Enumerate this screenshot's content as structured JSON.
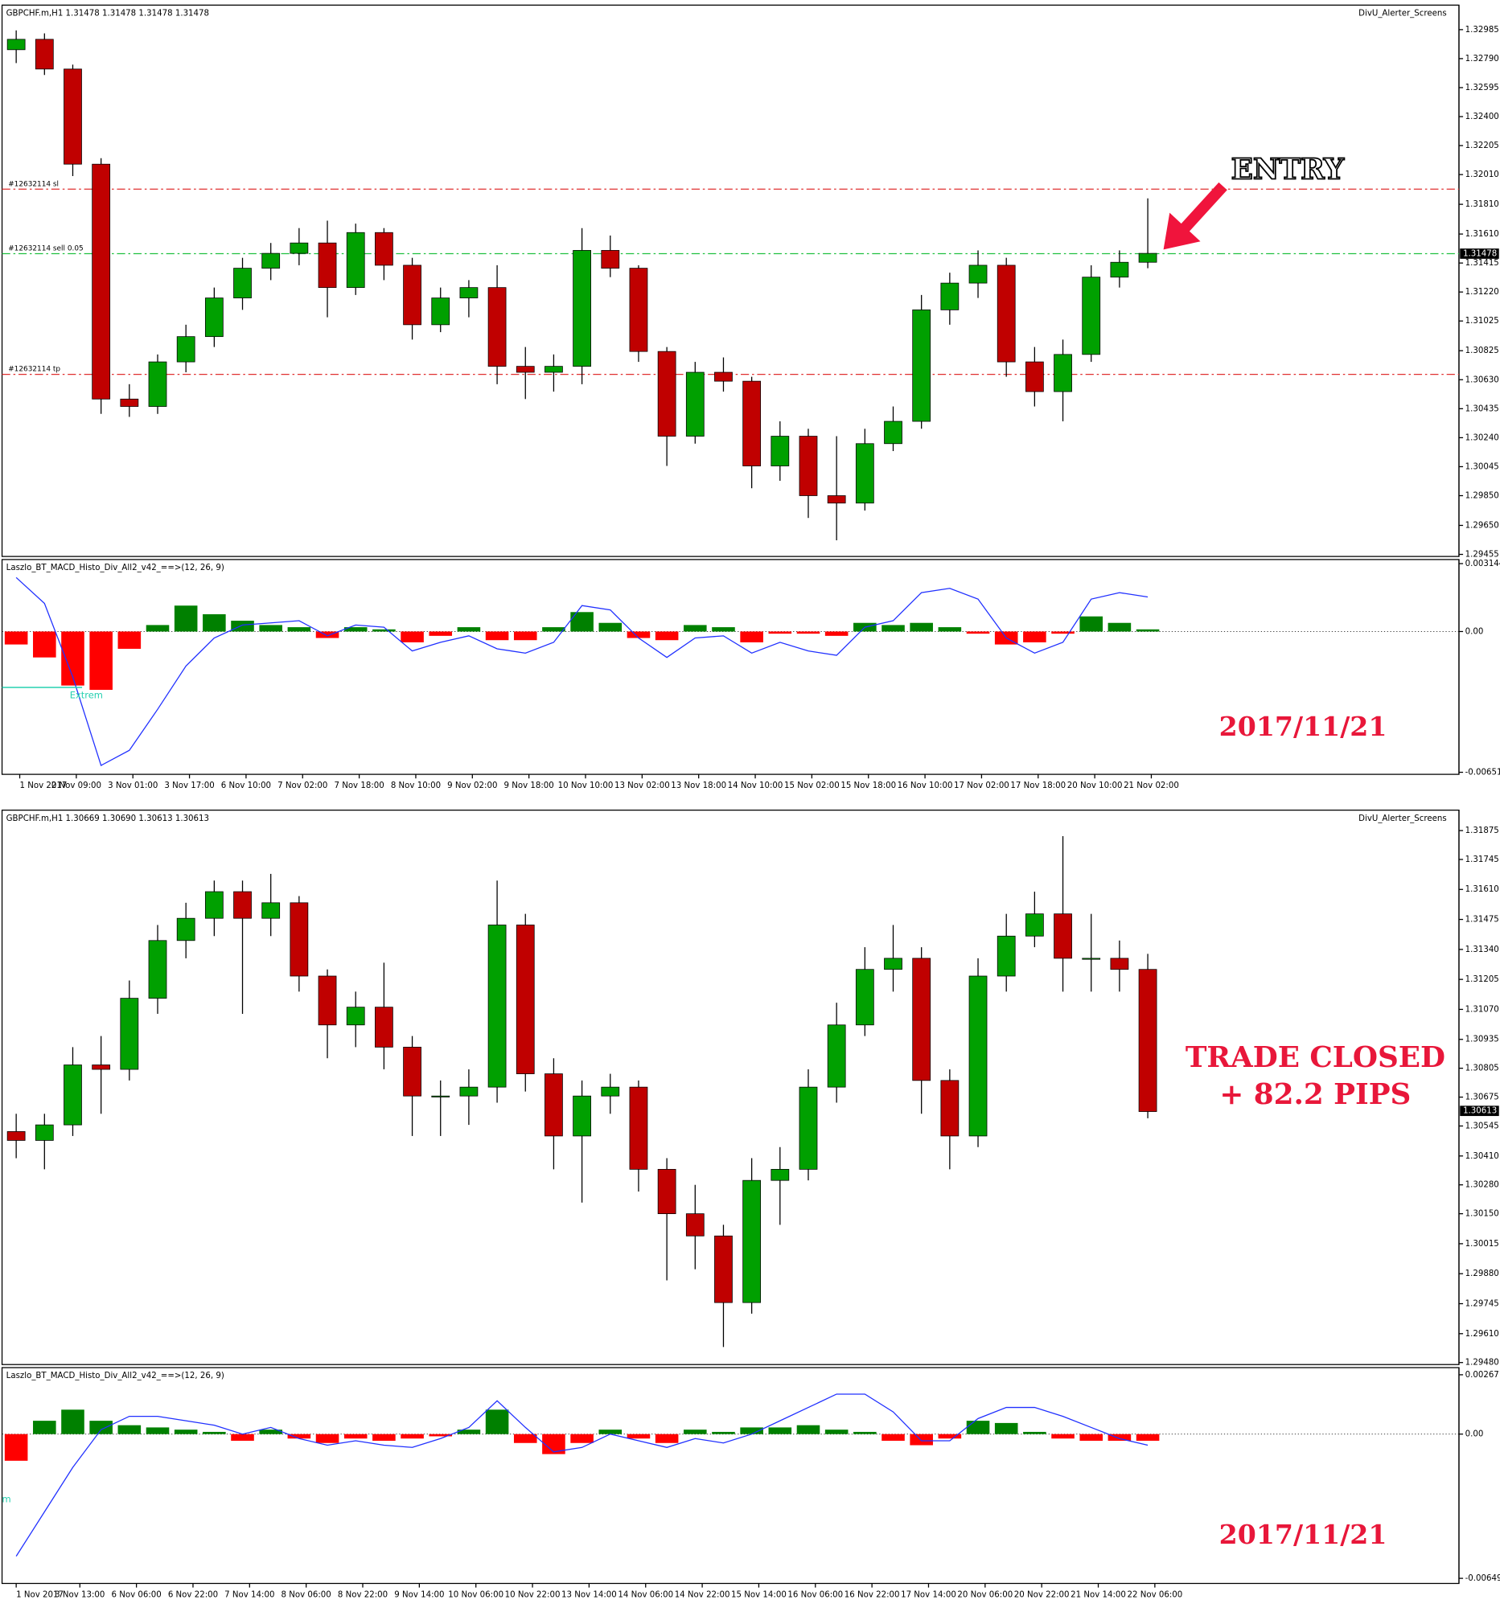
{
  "chart_data": [
    {
      "type": "candlestick",
      "title": "GBPCHF.m,H1  1.31478 1.31478 1.31478 1.31478",
      "indicator_label": "DivU_Alerter_Screens",
      "x": [
        4,
        12,
        20,
        28,
        36,
        44,
        52,
        60,
        68,
        76,
        84,
        92,
        100,
        108,
        116,
        124,
        132,
        140,
        148,
        156,
        164,
        172,
        180,
        188,
        196,
        204,
        212,
        220,
        228,
        236,
        244,
        252,
        260,
        268,
        276,
        284,
        292,
        300,
        308,
        316,
        324
      ],
      "open": [
        1.3285,
        1.3292,
        1.3272,
        1.3208,
        1.305,
        1.3045,
        1.3075,
        1.3092,
        1.3118,
        1.3138,
        1.3148,
        1.3155,
        1.3125,
        1.3162,
        1.314,
        1.31,
        1.3118,
        1.3125,
        1.3072,
        1.3068,
        1.3072,
        1.315,
        1.3138,
        1.3082,
        1.3025,
        1.3068,
        1.3062,
        1.3005,
        1.3025,
        1.2985,
        1.298,
        1.302,
        1.3035,
        1.311,
        1.3128,
        1.314,
        1.3075,
        1.3055,
        1.308,
        1.3132,
        1.3142
      ],
      "high": [
        1.3298,
        1.3296,
        1.3275,
        1.3212,
        1.306,
        1.308,
        1.31,
        1.3125,
        1.3145,
        1.3155,
        1.3165,
        1.317,
        1.3168,
        1.3165,
        1.3145,
        1.3125,
        1.313,
        1.314,
        1.3085,
        1.308,
        1.3165,
        1.316,
        1.314,
        1.3085,
        1.3075,
        1.3078,
        1.3065,
        1.3035,
        1.303,
        1.3025,
        1.303,
        1.3045,
        1.312,
        1.3135,
        1.315,
        1.3145,
        1.3085,
        1.309,
        1.314,
        1.315,
        1.3185
      ],
      "low": [
        1.3276,
        1.3268,
        1.32,
        1.304,
        1.3038,
        1.304,
        1.3068,
        1.3085,
        1.311,
        1.313,
        1.314,
        1.3105,
        1.312,
        1.313,
        1.309,
        1.3095,
        1.3105,
        1.306,
        1.305,
        1.3055,
        1.306,
        1.3132,
        1.3075,
        1.3005,
        1.302,
        1.3055,
        1.299,
        1.2995,
        1.297,
        1.2955,
        1.2975,
        1.3015,
        1.303,
        1.31,
        1.3118,
        1.3065,
        1.3045,
        1.3035,
        1.3075,
        1.3125,
        1.3138
      ],
      "close": [
        1.3292,
        1.3272,
        1.3208,
        1.305,
        1.3045,
        1.3075,
        1.3092,
        1.3118,
        1.3138,
        1.3148,
        1.3155,
        1.3125,
        1.3162,
        1.314,
        1.31,
        1.3118,
        1.3125,
        1.3072,
        1.3068,
        1.3072,
        1.315,
        1.3138,
        1.3082,
        1.3025,
        1.3068,
        1.3062,
        1.3005,
        1.3025,
        1.2985,
        1.298,
        1.302,
        1.3035,
        1.311,
        1.3128,
        1.314,
        1.3075,
        1.3055,
        1.308,
        1.3132,
        1.3142,
        1.3148
      ],
      "up_color": "#00a000",
      "down_color": "#c00000",
      "xlim": [
        0,
        412
      ],
      "ylim": [
        1.29441,
        1.3315
      ],
      "yticks": [
        {
          "value": 1.32985,
          "label": "1.32985"
        },
        {
          "value": 1.3279,
          "label": "1.32790"
        },
        {
          "value": 1.32595,
          "label": "1.32595"
        },
        {
          "value": 1.324,
          "label": "1.32400"
        },
        {
          "value": 1.32205,
          "label": "1.32205"
        },
        {
          "value": 1.3201,
          "label": "1.32010"
        },
        {
          "value": 1.3181,
          "label": "1.31810"
        },
        {
          "value": 1.3161,
          "label": "1.31610"
        },
        {
          "value": 1.31415,
          "label": "1.31415"
        },
        {
          "value": 1.3122,
          "label": "1.31220"
        },
        {
          "value": 1.31025,
          "label": "1.31025"
        },
        {
          "value": 1.30825,
          "label": "1.30825"
        },
        {
          "value": 1.3063,
          "label": "1.30630"
        },
        {
          "value": 1.30435,
          "label": "1.30435"
        },
        {
          "value": 1.3024,
          "label": "1.30240"
        },
        {
          "value": 1.30045,
          "label": "1.30045"
        },
        {
          "value": 1.2985,
          "label": "1.29850"
        },
        {
          "value": 1.2965,
          "label": "1.29650"
        },
        {
          "value": 1.29455,
          "label": "1.29455"
        }
      ],
      "current_price": {
        "value": 1.31478,
        "label": "1.31478"
      },
      "order_lines": [
        {
          "label": "#12632114 sl",
          "value": 1.31912,
          "color": "#e03030"
        },
        {
          "label": "#12632114 sell 0.05",
          "value": 1.31478,
          "color": "#20c040"
        },
        {
          "label": "#12632114 tp",
          "value": 1.30666,
          "color": "#e03030"
        }
      ],
      "annotations": [
        "ENTRY"
      ]
    },
    {
      "type": "macd",
      "title": "Laszlo_BT_MACD_Histo_Div_All2_v42_==>(12, 26, 9)",
      "x": [
        4,
        12,
        20,
        28,
        36,
        44,
        52,
        60,
        68,
        76,
        84,
        92,
        100,
        108,
        116,
        124,
        132,
        140,
        148,
        156,
        164,
        172,
        180,
        188,
        196,
        204,
        212,
        220,
        228,
        236,
        244,
        252,
        260,
        268,
        276,
        284,
        292,
        300,
        308,
        316,
        324
      ],
      "values": [
        -0.0006,
        -0.0012,
        -0.0025,
        -0.0027,
        -0.0008,
        0.0003,
        0.0012,
        0.0008,
        0.0005,
        0.0003,
        0.0002,
        -0.0003,
        0.0002,
        0.0001,
        -0.0005,
        -0.0002,
        0.0002,
        -0.0004,
        -0.0004,
        0.0002,
        0.0009,
        0.0004,
        -0.0003,
        -0.0004,
        0.0003,
        0.0002,
        -0.0005,
        -0.0001,
        -0.0001,
        -0.0002,
        0.0004,
        0.0003,
        0.0004,
        0.0002,
        -0.0001,
        -0.0006,
        -0.0005,
        -0.0001,
        0.0007,
        0.0004,
        0.0001
      ],
      "pos_color": "#008000",
      "neg_color": "#ff0000",
      "line": {
        "color": "#2030ff",
        "values": [
          0.0025,
          0.0013,
          -0.0021,
          -0.0062,
          -0.0055,
          -0.0036,
          -0.0016,
          -0.0003,
          0.0003,
          0.0004,
          0.0005,
          -0.0002,
          0.0003,
          0.0002,
          -0.0009,
          -0.0005,
          -0.0002,
          -0.0008,
          -0.001,
          -0.0005,
          0.0012,
          0.001,
          -0.0003,
          -0.0012,
          -0.0003,
          -0.0002,
          -0.001,
          -0.0005,
          -0.0009,
          -0.0011,
          0.0002,
          0.0005,
          0.0018,
          0.002,
          0.0015,
          -0.0003,
          -0.001,
          -0.0005,
          0.0015,
          0.0018,
          0.0016
        ]
      },
      "xlim": [
        0,
        412
      ],
      "ylim": [
        -0.006612,
        0.003333
      ],
      "yticks": [
        0.003144,
        {
          "value": 0,
          "label": "0.00"
        },
        -0.006517
      ],
      "xticks": [
        {
          "value": 5,
          "label": "1 Nov 2017"
        },
        {
          "value": 21,
          "label": "2 Nov 09:00"
        },
        {
          "value": 37,
          "label": "3 Nov 01:00"
        },
        {
          "value": 53,
          "label": "3 Nov 17:00"
        },
        {
          "value": 69,
          "label": "6 Nov 10:00"
        },
        {
          "value": 85,
          "label": "7 Nov 02:00"
        },
        {
          "value": 101,
          "label": "7 Nov 18:00"
        },
        {
          "value": 117,
          "label": "8 Nov 10:00"
        },
        {
          "value": 133,
          "label": "9 Nov 02:00"
        },
        {
          "value": 149,
          "label": "9 Nov 18:00"
        },
        {
          "value": 165,
          "label": "10 Nov 10:00"
        },
        {
          "value": 181,
          "label": "13 Nov 02:00"
        },
        {
          "value": 197,
          "label": "13 Nov 18:00"
        },
        {
          "value": 213,
          "label": "14 Nov 10:00"
        },
        {
          "value": 229,
          "label": "15 Nov 02:00"
        },
        {
          "value": 245,
          "label": "15 Nov 18:00"
        },
        {
          "value": 261,
          "label": "16 Nov 10:00"
        },
        {
          "value": 277,
          "label": "17 Nov 02:00"
        },
        {
          "value": 293,
          "label": "17 Nov 18:00"
        },
        {
          "value": 309,
          "label": "20 Nov 10:00"
        },
        {
          "value": 325,
          "label": "21 Nov 02:00"
        }
      ],
      "extrem_label": "Extrem",
      "annotations": [
        "2017/11/21"
      ]
    },
    {
      "type": "candlestick",
      "title": "GBPCHF.m,H1  1.30669 1.30690 1.30613 1.30613",
      "indicator_label": "DivU_Alerter_Screens",
      "x": [
        4,
        12,
        20,
        28,
        36,
        44,
        52,
        60,
        68,
        76,
        84,
        92,
        100,
        108,
        116,
        124,
        132,
        140,
        148,
        156,
        164,
        172,
        180,
        188,
        196,
        204,
        212,
        220,
        228,
        236,
        244,
        252,
        260,
        268,
        276,
        284,
        292,
        300,
        308,
        316,
        324
      ],
      "open": [
        1.3052,
        1.3048,
        1.3055,
        1.3082,
        1.308,
        1.3112,
        1.3138,
        1.3148,
        1.316,
        1.3148,
        1.3155,
        1.3122,
        1.31,
        1.3108,
        1.309,
        1.3068,
        1.3068,
        1.3072,
        1.3145,
        1.3078,
        1.305,
        1.3068,
        1.3072,
        1.3035,
        1.3015,
        1.3005,
        1.2975,
        1.303,
        1.3035,
        1.3072,
        1.31,
        1.3125,
        1.313,
        1.3075,
        1.305,
        1.3122,
        1.314,
        1.315,
        1.313,
        1.313,
        1.3125
      ],
      "high": [
        1.306,
        1.306,
        1.309,
        1.3095,
        1.312,
        1.3145,
        1.3155,
        1.3165,
        1.3165,
        1.3168,
        1.3158,
        1.3125,
        1.3115,
        1.3128,
        1.3095,
        1.3075,
        1.308,
        1.3165,
        1.315,
        1.3085,
        1.3075,
        1.3078,
        1.3075,
        1.304,
        1.3028,
        1.301,
        1.304,
        1.3045,
        1.308,
        1.311,
        1.3135,
        1.3145,
        1.3135,
        1.308,
        1.313,
        1.315,
        1.316,
        1.3185,
        1.315,
        1.3138,
        1.3132
      ],
      "low": [
        1.304,
        1.3035,
        1.305,
        1.306,
        1.3075,
        1.3105,
        1.313,
        1.314,
        1.3105,
        1.314,
        1.3115,
        1.3085,
        1.309,
        1.308,
        1.305,
        1.305,
        1.3055,
        1.3065,
        1.307,
        1.3035,
        1.302,
        1.306,
        1.3025,
        1.2985,
        1.299,
        1.2955,
        1.297,
        1.301,
        1.303,
        1.3065,
        1.3095,
        1.3115,
        1.306,
        1.3035,
        1.3045,
        1.3115,
        1.3135,
        1.3115,
        1.3115,
        1.3115,
        1.3058
      ],
      "close": [
        1.3048,
        1.3055,
        1.3082,
        1.308,
        1.3112,
        1.3138,
        1.3148,
        1.316,
        1.3148,
        1.3155,
        1.3122,
        1.31,
        1.3108,
        1.309,
        1.3068,
        1.3068,
        1.3072,
        1.3145,
        1.3078,
        1.305,
        1.3068,
        1.3072,
        1.3035,
        1.3015,
        1.3005,
        1.2975,
        1.303,
        1.3035,
        1.3072,
        1.31,
        1.3125,
        1.313,
        1.3075,
        1.305,
        1.3122,
        1.314,
        1.315,
        1.313,
        1.313,
        1.3125,
        1.3061
      ],
      "up_color": "#00a000",
      "down_color": "#c00000",
      "xlim": [
        0,
        412
      ],
      "ylim": [
        1.29471,
        1.31967
      ],
      "yticks": [
        {
          "value": 1.31875,
          "label": "1.31875"
        },
        {
          "value": 1.31745,
          "label": "1.31745"
        },
        {
          "value": 1.3161,
          "label": "1.31610"
        },
        {
          "value": 1.31475,
          "label": "1.31475"
        },
        {
          "value": 1.3134,
          "label": "1.31340"
        },
        {
          "value": 1.31205,
          "label": "1.31205"
        },
        {
          "value": 1.3107,
          "label": "1.31070"
        },
        {
          "value": 1.30935,
          "label": "1.30935"
        },
        {
          "value": 1.30805,
          "label": "1.30805"
        },
        {
          "value": 1.30675,
          "label": "1.30675"
        },
        {
          "value": 1.30545,
          "label": "1.30545"
        },
        {
          "value": 1.3041,
          "label": "1.30410"
        },
        {
          "value": 1.3028,
          "label": "1.30280"
        },
        {
          "value": 1.3015,
          "label": "1.30150"
        },
        {
          "value": 1.30015,
          "label": "1.30015"
        },
        {
          "value": 1.2988,
          "label": "1.29880"
        },
        {
          "value": 1.29745,
          "label": "1.29745"
        },
        {
          "value": 1.2961,
          "label": "1.29610"
        },
        {
          "value": 1.2948,
          "label": "1.29480"
        }
      ],
      "current_price": {
        "value": 1.30613,
        "label": "1.30613"
      },
      "order_lines": [],
      "annotations": [
        "TRADE CLOSED",
        "+ 82.2 PIPS"
      ]
    },
    {
      "type": "macd",
      "title": "Laszlo_BT_MACD_Histo_Div_All2_v42_==>(12, 26, 9)",
      "x": [
        4,
        12,
        20,
        28,
        36,
        44,
        52,
        60,
        68,
        76,
        84,
        92,
        100,
        108,
        116,
        124,
        132,
        140,
        148,
        156,
        164,
        172,
        180,
        188,
        196,
        204,
        212,
        220,
        228,
        236,
        244,
        252,
        260,
        268,
        276,
        284,
        292,
        300,
        308,
        316,
        324
      ],
      "values": [
        -0.0012,
        0.0006,
        0.0011,
        0.0006,
        0.0004,
        0.0003,
        0.0002,
        0.0001,
        -0.0003,
        0.0002,
        -0.0002,
        -0.0004,
        -0.0002,
        -0.0003,
        -0.0002,
        -0.0001,
        0.0002,
        0.0011,
        -0.0004,
        -0.0009,
        -0.0004,
        0.0002,
        -0.0002,
        -0.0004,
        0.0002,
        0.0001,
        0.0003,
        0.0003,
        0.0004,
        0.0002,
        0.0001,
        -0.0003,
        -0.0005,
        -0.0002,
        0.0006,
        0.0005,
        0.0001,
        -0.0002,
        -0.0003,
        -0.0003,
        -0.0003
      ],
      "pos_color": "#008000",
      "neg_color": "#ff0000",
      "line": {
        "color": "#2030ff",
        "values": [
          -0.0055,
          -0.0035,
          -0.0015,
          0.0002,
          0.0008,
          0.0008,
          0.0006,
          0.0004,
          0,
          0.0003,
          -0.0002,
          -0.0005,
          -0.0003,
          -0.0005,
          -0.0006,
          -0.0002,
          0.0003,
          0.0015,
          0.0003,
          -0.0008,
          -0.0006,
          0,
          -0.0003,
          -0.0006,
          -0.0002,
          -0.0004,
          0,
          0.0006,
          0.0012,
          0.0018,
          0.0018,
          0.001,
          -0.0003,
          -0.0003,
          0.0007,
          0.0012,
          0.0012,
          0.0008,
          0.0003,
          -0.0002,
          -0.0005
        ]
      },
      "xlim": [
        0,
        412
      ],
      "ylim": [
        -0.006724,
        0.002993
      ],
      "yticks": [
        0.002671,
        {
          "value": 0,
          "label": "0.00"
        },
        -0.006494
      ],
      "xticks": [
        {
          "value": 4,
          "label": "1 Nov 2017"
        },
        {
          "value": 22,
          "label": "3 Nov 13:00"
        },
        {
          "value": 38,
          "label": "6 Nov 06:00"
        },
        {
          "value": 54,
          "label": "6 Nov 22:00"
        },
        {
          "value": 70,
          "label": "7 Nov 14:00"
        },
        {
          "value": 86,
          "label": "8 Nov 06:00"
        },
        {
          "value": 102,
          "label": "8 Nov 22:00"
        },
        {
          "value": 118,
          "label": "9 Nov 14:00"
        },
        {
          "value": 134,
          "label": "10 Nov 06:00"
        },
        {
          "value": 150,
          "label": "10 Nov 22:00"
        },
        {
          "value": 166,
          "label": "13 Nov 14:00"
        },
        {
          "value": 182,
          "label": "14 Nov 06:00"
        },
        {
          "value": 198,
          "label": "14 Nov 22:00"
        },
        {
          "value": 214,
          "label": "15 Nov 14:00"
        },
        {
          "value": 230,
          "label": "16 Nov 06:00"
        },
        {
          "value": 246,
          "label": "16 Nov 22:00"
        },
        {
          "value": 262,
          "label": "17 Nov 14:00"
        },
        {
          "value": 278,
          "label": "20 Nov 06:00"
        },
        {
          "value": 294,
          "label": "20 Nov 22:00"
        },
        {
          "value": 310,
          "label": "21 Nov 14:00"
        },
        {
          "value": 326,
          "label": "22 Nov 06:00"
        }
      ],
      "extrem_label": "m",
      "annotations": [
        "2017/11/21"
      ]
    }
  ]
}
